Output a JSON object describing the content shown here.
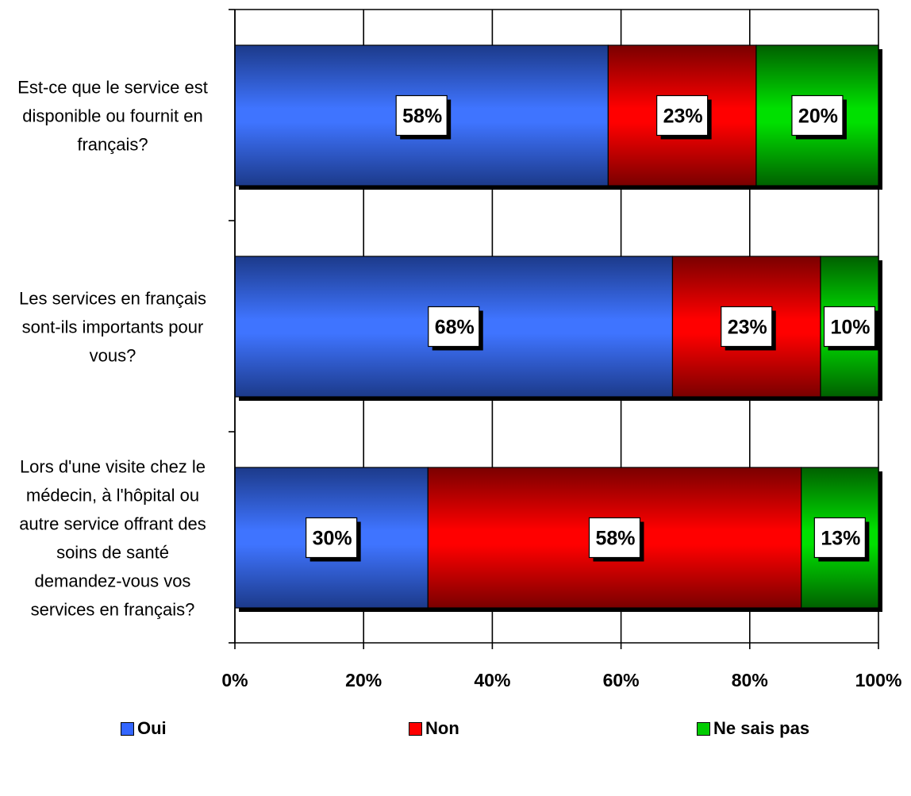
{
  "chart_data": {
    "type": "bar",
    "orientation": "horizontal",
    "stacked": true,
    "percent_stacked": true,
    "categories": [
      "Est-ce que le service est disponible ou fournit en français?",
      "Les services en français sont-ils importants pour vous?",
      "Lors d'une visite chez le médecin, à l'hôpital ou autre service offrant des soins de santé demandez-vous vos services en français?"
    ],
    "category_lines": [
      [
        "Est-ce que le service est",
        "disponible ou fournit en",
        "français?"
      ],
      [
        "Les services en français",
        "sont-ils importants pour",
        "vous?"
      ],
      [
        "Lors d'une visite chez le",
        "médecin, à l'hôpital ou",
        "autre service offrant des",
        "soins de santé",
        "demandez-vous vos",
        "services en français?"
      ]
    ],
    "series": [
      {
        "name": "Oui",
        "color": "#3366ff",
        "values": [
          58,
          68,
          30
        ],
        "labels": [
          "58%",
          "68%",
          "30%"
        ]
      },
      {
        "name": "Non",
        "color": "#ff0000",
        "values": [
          23,
          23,
          58
        ],
        "labels": [
          "23%",
          "23%",
          "58%"
        ]
      },
      {
        "name": "Ne sais pas",
        "color": "#00cc00",
        "values": [
          20,
          10,
          13
        ],
        "labels": [
          "20%",
          "10%",
          "13%"
        ]
      }
    ],
    "x_ticks": [
      "0%",
      "20%",
      "40%",
      "60%",
      "80%",
      "100%"
    ],
    "xlim": [
      0,
      100
    ],
    "grid": true,
    "legend_position": "bottom",
    "title": "",
    "xlabel": "",
    "ylabel": ""
  }
}
